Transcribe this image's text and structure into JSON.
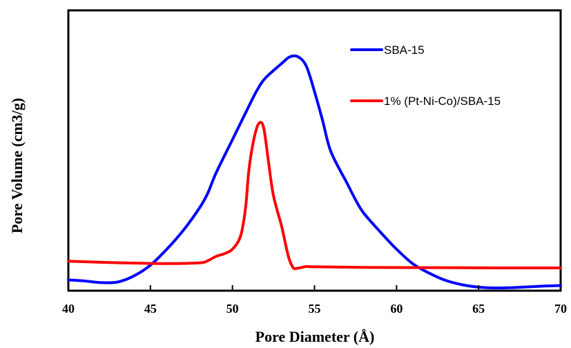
{
  "chart_data": {
    "type": "line",
    "xlabel": "Pore Diameter (Å)",
    "ylabel": "Pore Volume (cm3/g)",
    "xlim": [
      40,
      70
    ],
    "ylim": [
      0,
      1
    ],
    "x_ticks": [
      "40",
      "45",
      "50",
      "55",
      "60",
      "65",
      "70"
    ],
    "y_ticks_shown": false,
    "grid": false,
    "legend_position": "top-right",
    "series": [
      {
        "name": "SBA-15",
        "color": "#0000ff",
        "points": [
          [
            40,
            0.03
          ],
          [
            41,
            0.026
          ],
          [
            42,
            0.02
          ],
          [
            43,
            0.022
          ],
          [
            44,
            0.045
          ],
          [
            45,
            0.085
          ],
          [
            46,
            0.145
          ],
          [
            47,
            0.215
          ],
          [
            48,
            0.3
          ],
          [
            48.5,
            0.355
          ],
          [
            49,
            0.43
          ],
          [
            50,
            0.555
          ],
          [
            51,
            0.68
          ],
          [
            51.5,
            0.74
          ],
          [
            52,
            0.785
          ],
          [
            53,
            0.84
          ],
          [
            53.5,
            0.865
          ],
          [
            54,
            0.865
          ],
          [
            54.5,
            0.83
          ],
          [
            55,
            0.735
          ],
          [
            55.5,
            0.625
          ],
          [
            56,
            0.51
          ],
          [
            57,
            0.39
          ],
          [
            57.5,
            0.33
          ],
          [
            58,
            0.28
          ],
          [
            59,
            0.21
          ],
          [
            60,
            0.145
          ],
          [
            61,
            0.09
          ],
          [
            62,
            0.055
          ],
          [
            63,
            0.028
          ],
          [
            64,
            0.012
          ],
          [
            65,
            0.003
          ],
          [
            66,
            0.0
          ],
          [
            67,
            0.001
          ],
          [
            68,
            0.004
          ],
          [
            69,
            0.007
          ],
          [
            70,
            0.009
          ]
        ]
      },
      {
        "name": "1% (Pt-Ni-Co)/SBA-15",
        "color": "#ff0000",
        "points": [
          [
            40,
            0.1
          ],
          [
            42,
            0.096
          ],
          [
            44,
            0.093
          ],
          [
            46,
            0.091
          ],
          [
            48,
            0.094
          ],
          [
            48.5,
            0.102
          ],
          [
            49,
            0.118
          ],
          [
            49.5,
            0.128
          ],
          [
            50,
            0.145
          ],
          [
            50.5,
            0.195
          ],
          [
            50.8,
            0.3
          ],
          [
            51,
            0.44
          ],
          [
            51.3,
            0.555
          ],
          [
            51.6,
            0.615
          ],
          [
            51.9,
            0.6
          ],
          [
            52.2,
            0.47
          ],
          [
            52.5,
            0.345
          ],
          [
            53,
            0.23
          ],
          [
            53.4,
            0.12
          ],
          [
            53.7,
            0.076
          ],
          [
            54,
            0.074
          ],
          [
            54.5,
            0.08
          ],
          [
            55,
            0.079
          ],
          [
            58,
            0.077
          ],
          [
            62,
            0.076
          ],
          [
            66,
            0.075
          ],
          [
            70,
            0.075
          ]
        ]
      }
    ]
  }
}
